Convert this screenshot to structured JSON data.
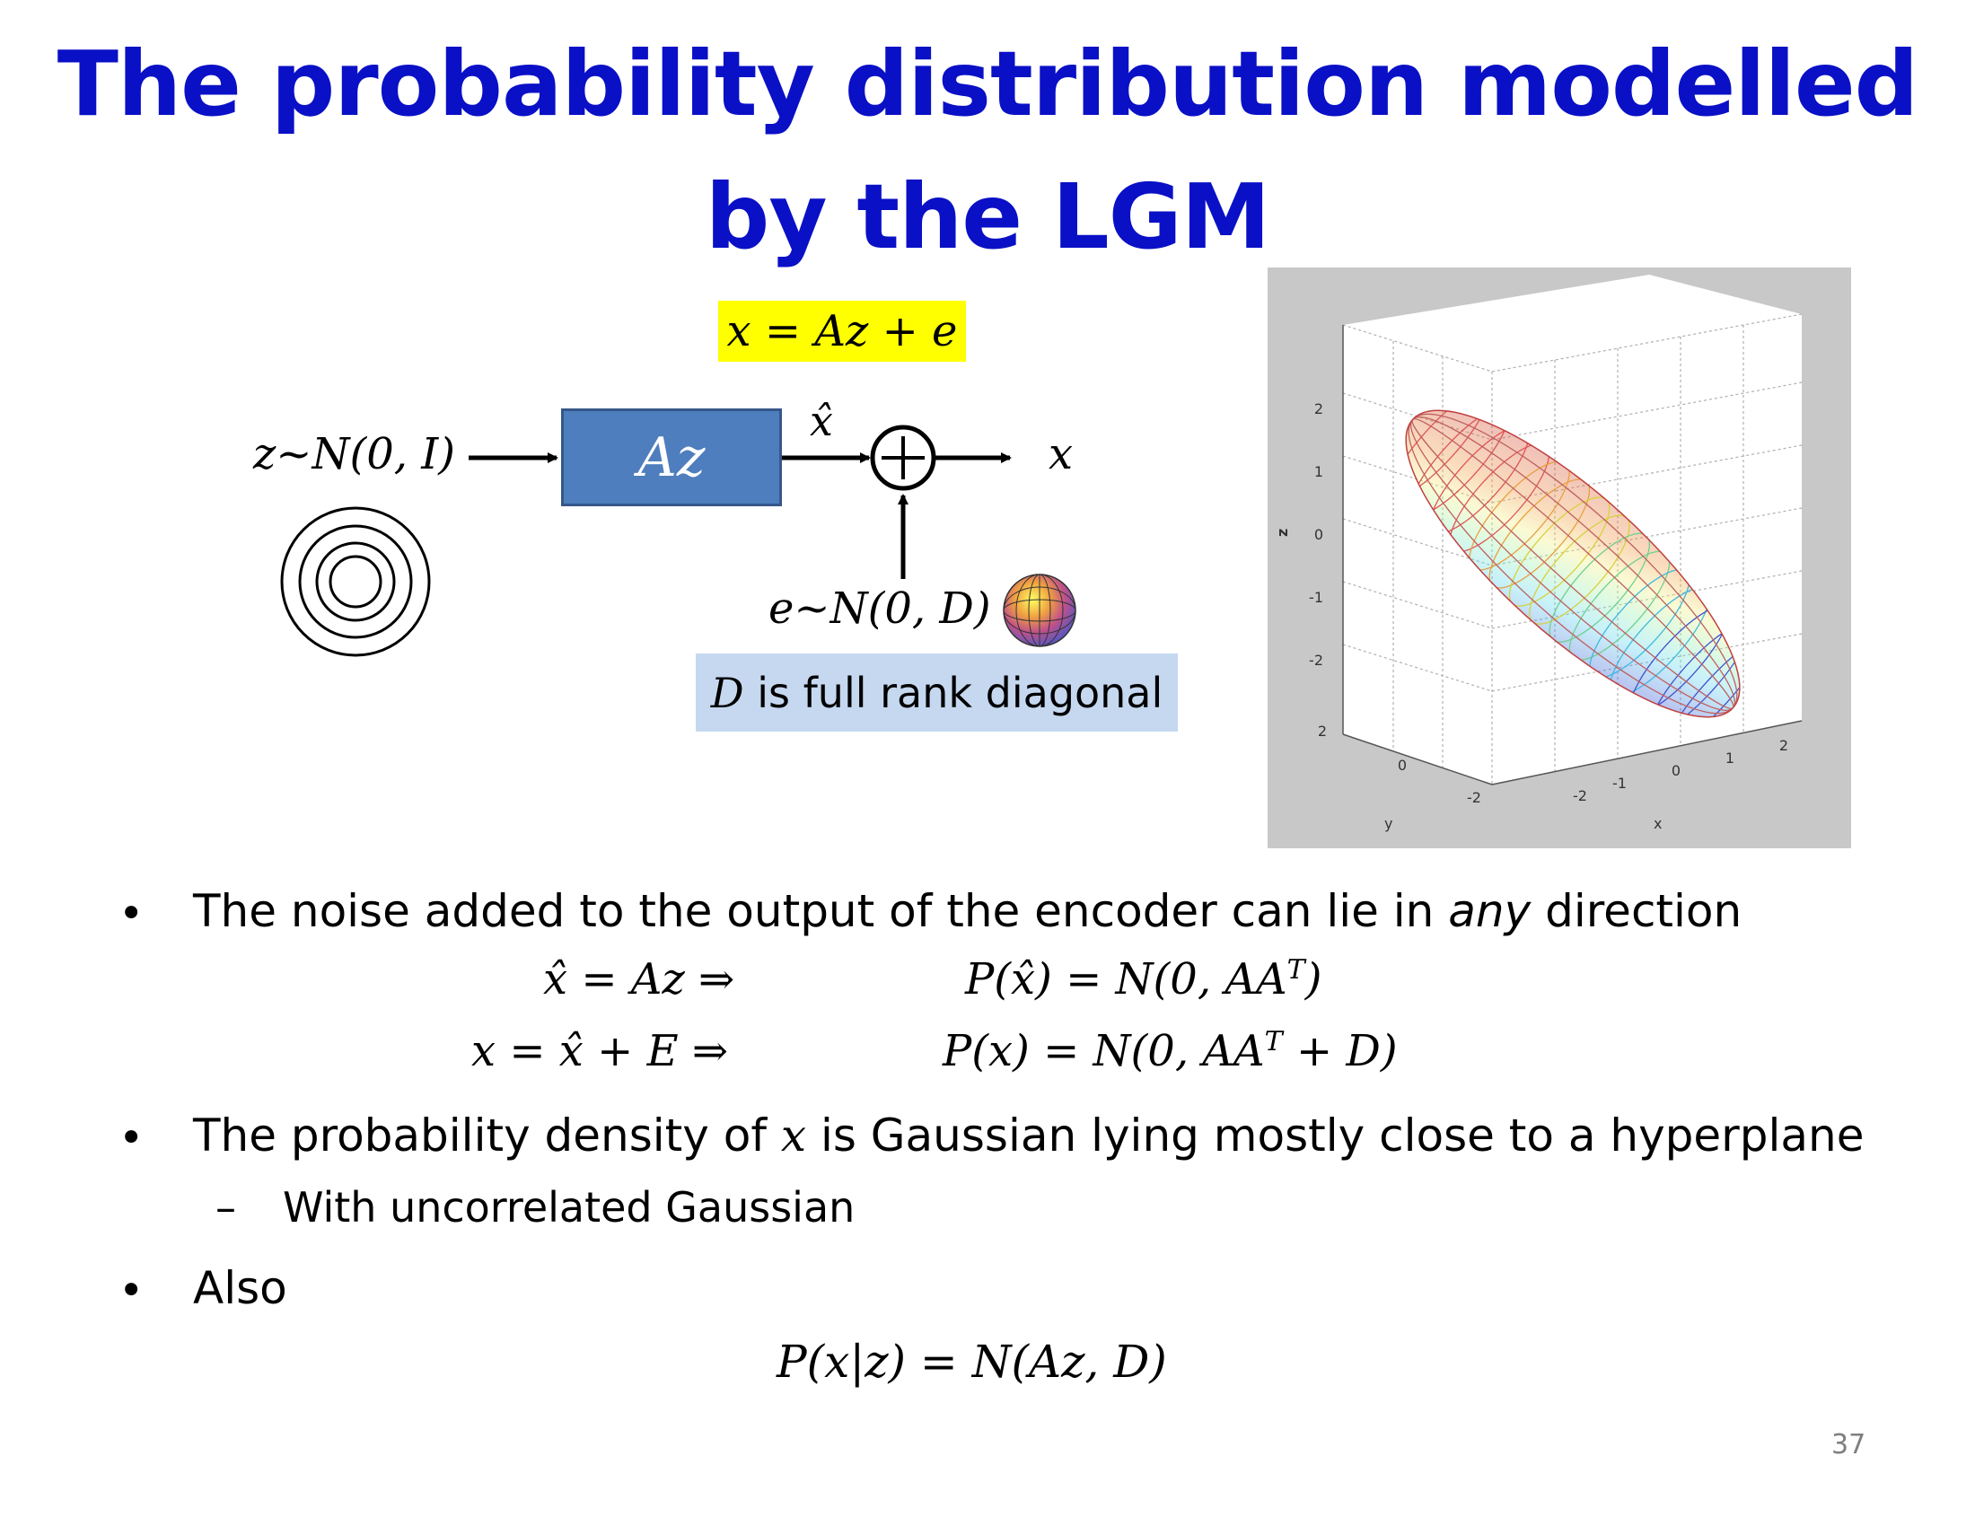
{
  "title": {
    "line1": "The probability distribution modelled",
    "line2": "by the LGM"
  },
  "diagram": {
    "model_equation": "x = Az + e",
    "input_label": "z~N(0, I)",
    "box_label": "Az",
    "xhat_label": "x̂",
    "output_label": "x",
    "noise_label": "e~N(0, D)",
    "note_var": "D",
    "note_text": " is full rank diagonal",
    "plus_icon": "circled-plus-icon",
    "sphere_icon": "colored-sphere-icon",
    "circles_icon": "concentric-circles-icon"
  },
  "plot3d": {
    "z_axis_label": "z",
    "y_axis_label": "y",
    "x_axis_label": "x",
    "z_ticks": [
      "2",
      "1",
      "0",
      "-1",
      "-2"
    ],
    "y_ticks": [
      "2",
      "0",
      "-2"
    ],
    "x_ticks": [
      "-2",
      "-1",
      "0",
      "1",
      "2"
    ]
  },
  "bullets": [
    {
      "text_before": "The noise added to the output of the encoder can lie in ",
      "text_em": "any",
      "text_after": " direction"
    },
    {
      "text_before": "The probability density of ",
      "text_var": "x",
      "text_after": " is Gaussian lying mostly close to a hyperplane",
      "sub": "With uncorrelated Gaussian"
    },
    {
      "text": "Also"
    }
  ],
  "bullet_marker": "•",
  "sub_marker": "–",
  "equations": {
    "eq1_left": "x̂ = Az ⇒",
    "eq1_right": "P(x̂) = N(0, AA",
    "eq1_right_sup": "T",
    "eq1_right_end": ")",
    "eq2_left": "x = x̂ + E ⇒",
    "eq2_right": "P(x) = N(0, AA",
    "eq2_right_sup": "T",
    "eq2_right_end": " + D)",
    "eq3": "P(x|z) = N(Az, D)"
  },
  "page_number": "37",
  "colors": {
    "title": "#0a10c6",
    "highlight": "#ffff00",
    "box": "#4e7ebd",
    "note_bg": "#c5d8f0",
    "plot_bg": "#c8c8c8"
  }
}
